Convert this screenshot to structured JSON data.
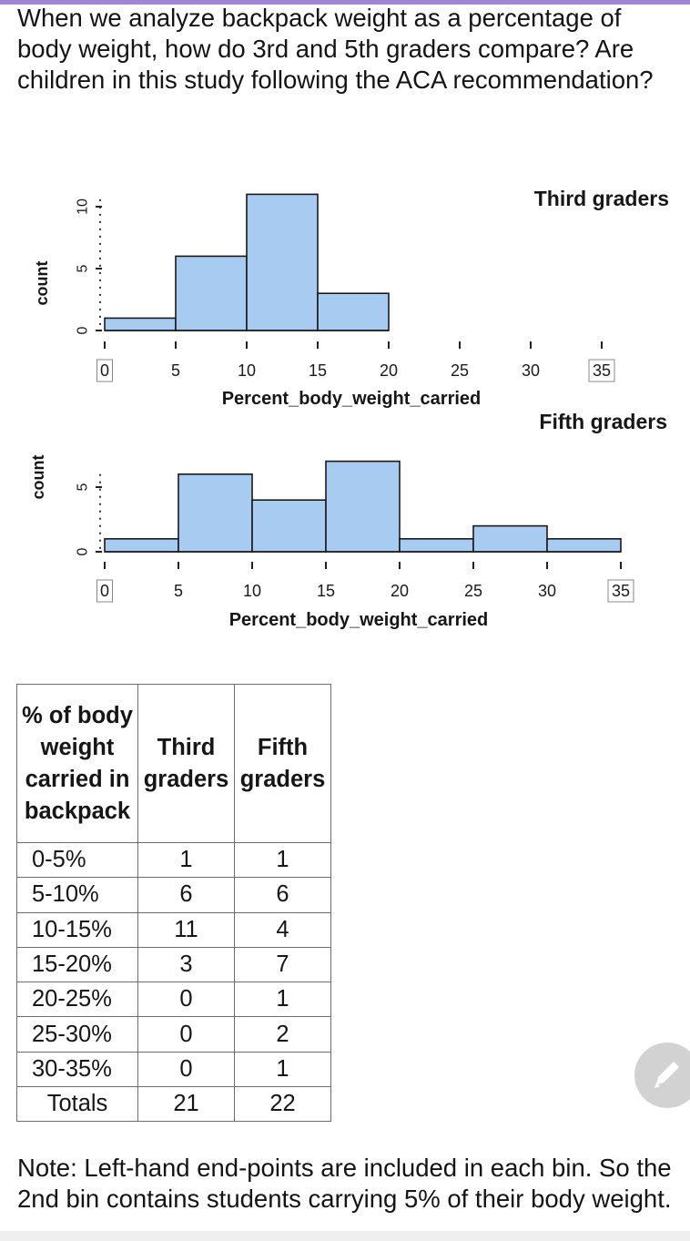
{
  "question": "When we analyze backpack weight as a percentage of body weight, how do 3rd and 5th graders compare? Are children in this study following the ACA recommendation?",
  "chart_data": [
    {
      "type": "bar",
      "title": "Third graders",
      "xlabel": "Percent_body_weight_carried",
      "ylabel": "count",
      "bin_edges": [
        0,
        5,
        10,
        15,
        20,
        25,
        30,
        35
      ],
      "values": [
        1,
        6,
        11,
        3,
        0,
        0,
        0
      ],
      "x_ticks": [
        0,
        5,
        10,
        15,
        20,
        25,
        30,
        35
      ],
      "y_ticks": [
        0,
        5,
        10
      ],
      "xlim": [
        0,
        35
      ],
      "bar_color": "#a8cbf2",
      "edge_color": "#1a1a1a"
    },
    {
      "type": "bar",
      "title": "Fifth graders",
      "xlabel": "Percent_body_weight_carried",
      "ylabel": "count",
      "bin_edges": [
        0,
        5,
        10,
        15,
        20,
        25,
        30,
        35
      ],
      "values": [
        1,
        6,
        4,
        7,
        1,
        2,
        1
      ],
      "x_ticks": [
        0,
        5,
        10,
        15,
        20,
        25,
        30,
        35
      ],
      "y_ticks": [
        0,
        5
      ],
      "xlim": [
        0,
        35
      ],
      "bar_color": "#a8cbf2",
      "edge_color": "#1a1a1a"
    }
  ],
  "table": {
    "headers": [
      "% of body weight carried in backpack",
      "Third graders",
      "Fifth graders"
    ],
    "rows": [
      [
        "0-5%",
        "1",
        "1"
      ],
      [
        "5-10%",
        "6",
        "6"
      ],
      [
        "10-15%",
        "11",
        "4"
      ],
      [
        "15-20%",
        "3",
        "7"
      ],
      [
        "20-25%",
        "0",
        "1"
      ],
      [
        "25-30%",
        "0",
        "2"
      ],
      [
        "30-35%",
        "0",
        "1"
      ],
      [
        "Totals",
        "21",
        "22"
      ]
    ]
  },
  "note": "Note: Left-hand end-points are included in each bin. So the 2nd bin contains students carrying 5% of their body weight.",
  "edit_icon": "pencil-icon",
  "fab_color": "#d2d2d2"
}
